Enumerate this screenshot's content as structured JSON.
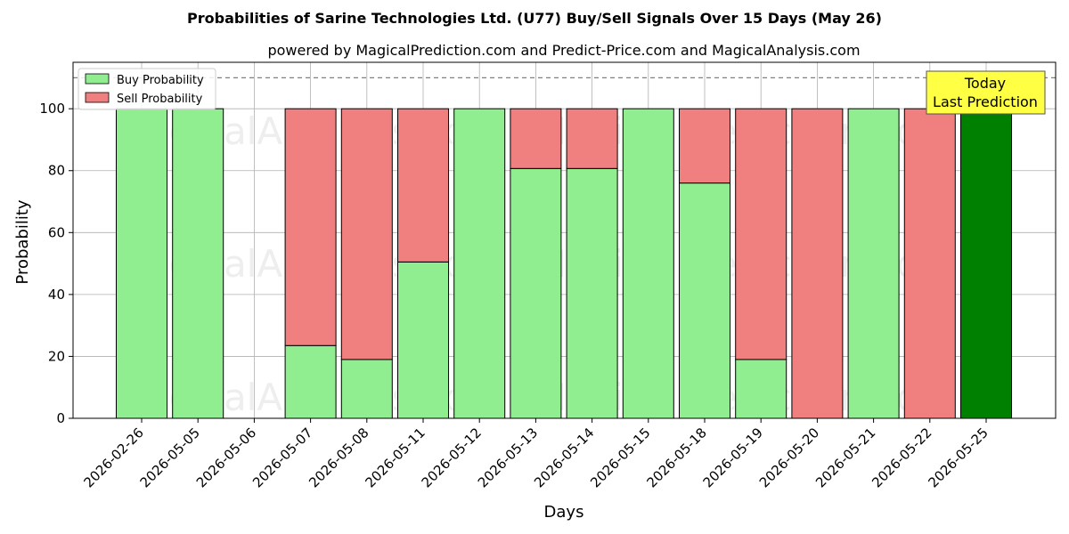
{
  "chart_data": {
    "type": "bar",
    "stacked": true,
    "title": "Probabilities of Sarine Technologies Ltd. (U77) Buy/Sell Signals Over 15 Days (May 26)",
    "subtitle": "powered by MagicalPrediction.com and Predict-Price.com and MagicalAnalysis.com",
    "xlabel": "Days",
    "ylabel": "Probability",
    "ylim": [
      0,
      115
    ],
    "yticks": [
      0,
      20,
      40,
      60,
      80,
      100
    ],
    "reference_line": 110,
    "grid": true,
    "legend_position": "top-left",
    "categories": [
      "2026-02-26",
      "2026-05-05",
      "2026-05-06",
      "2026-05-07",
      "2026-05-08",
      "2026-05-11",
      "2026-05-12",
      "2026-05-13",
      "2026-05-14",
      "2026-05-15",
      "2026-05-18",
      "2026-05-19",
      "2026-05-20",
      "2026-05-21",
      "2026-05-22",
      "2026-05-25"
    ],
    "series": [
      {
        "name": "Buy Probability",
        "color": "#90ee90",
        "values": [
          100,
          100,
          0,
          23.5,
          19,
          50.5,
          100,
          80.7,
          80.7,
          100,
          76,
          19,
          0,
          100,
          0,
          100
        ]
      },
      {
        "name": "Sell Probability",
        "color": "#f08080",
        "values": [
          0,
          0,
          0,
          76.5,
          81,
          49.5,
          0,
          19.3,
          19.3,
          0,
          24,
          81,
          100,
          0,
          100,
          0
        ]
      }
    ],
    "highlight": {
      "index": 15,
      "color": "#008000"
    },
    "annotation": {
      "line1": "Today",
      "line2": "Last Prediction",
      "background": "#ffff44"
    },
    "watermarks": [
      "MagicalAnalysis.com",
      "MagicalPrediction.com"
    ]
  }
}
